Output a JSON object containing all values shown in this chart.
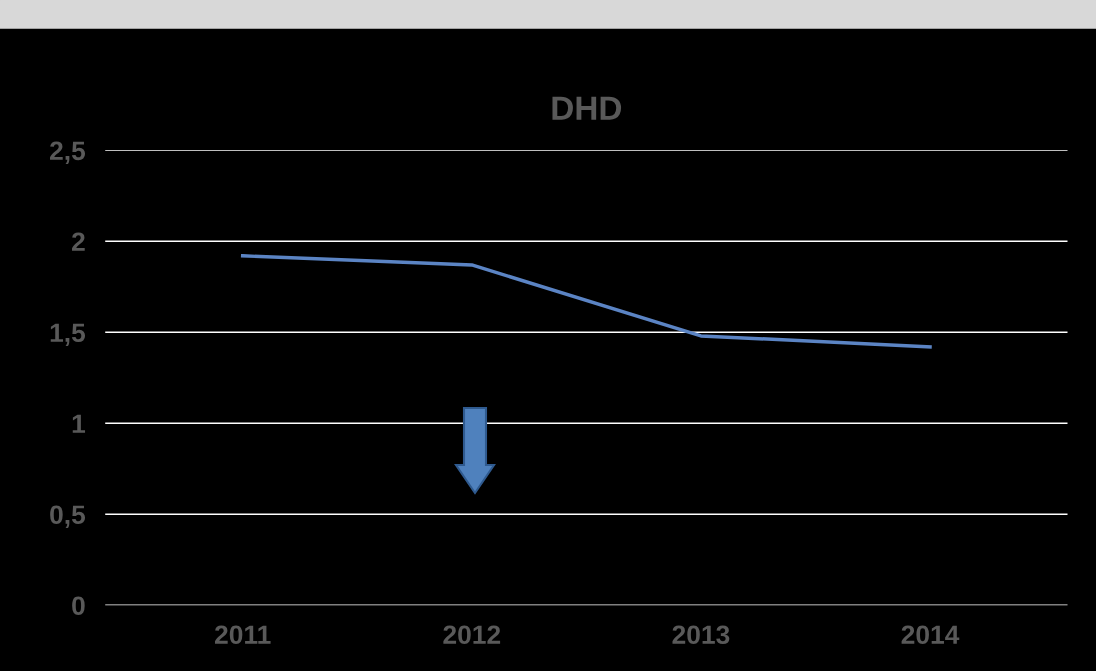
{
  "chart_data": {
    "type": "line",
    "title": "DHD",
    "categories": [
      "2011",
      "2012",
      "2013",
      "2014"
    ],
    "series": [
      {
        "color": "#5b84c4",
        "values": [
          1.92,
          1.87,
          1.48,
          1.42
        ]
      }
    ],
    "ylim": [
      0,
      2.5
    ],
    "yticks": [
      0,
      {
        "value": 0.5,
        "label": "0,5"
      },
      1,
      {
        "value": 1.5,
        "label": "1,5"
      },
      2,
      {
        "value": 2.5,
        "label": "2,5"
      }
    ],
    "grid": "y",
    "marker": "none",
    "line_style": "solid"
  }
}
